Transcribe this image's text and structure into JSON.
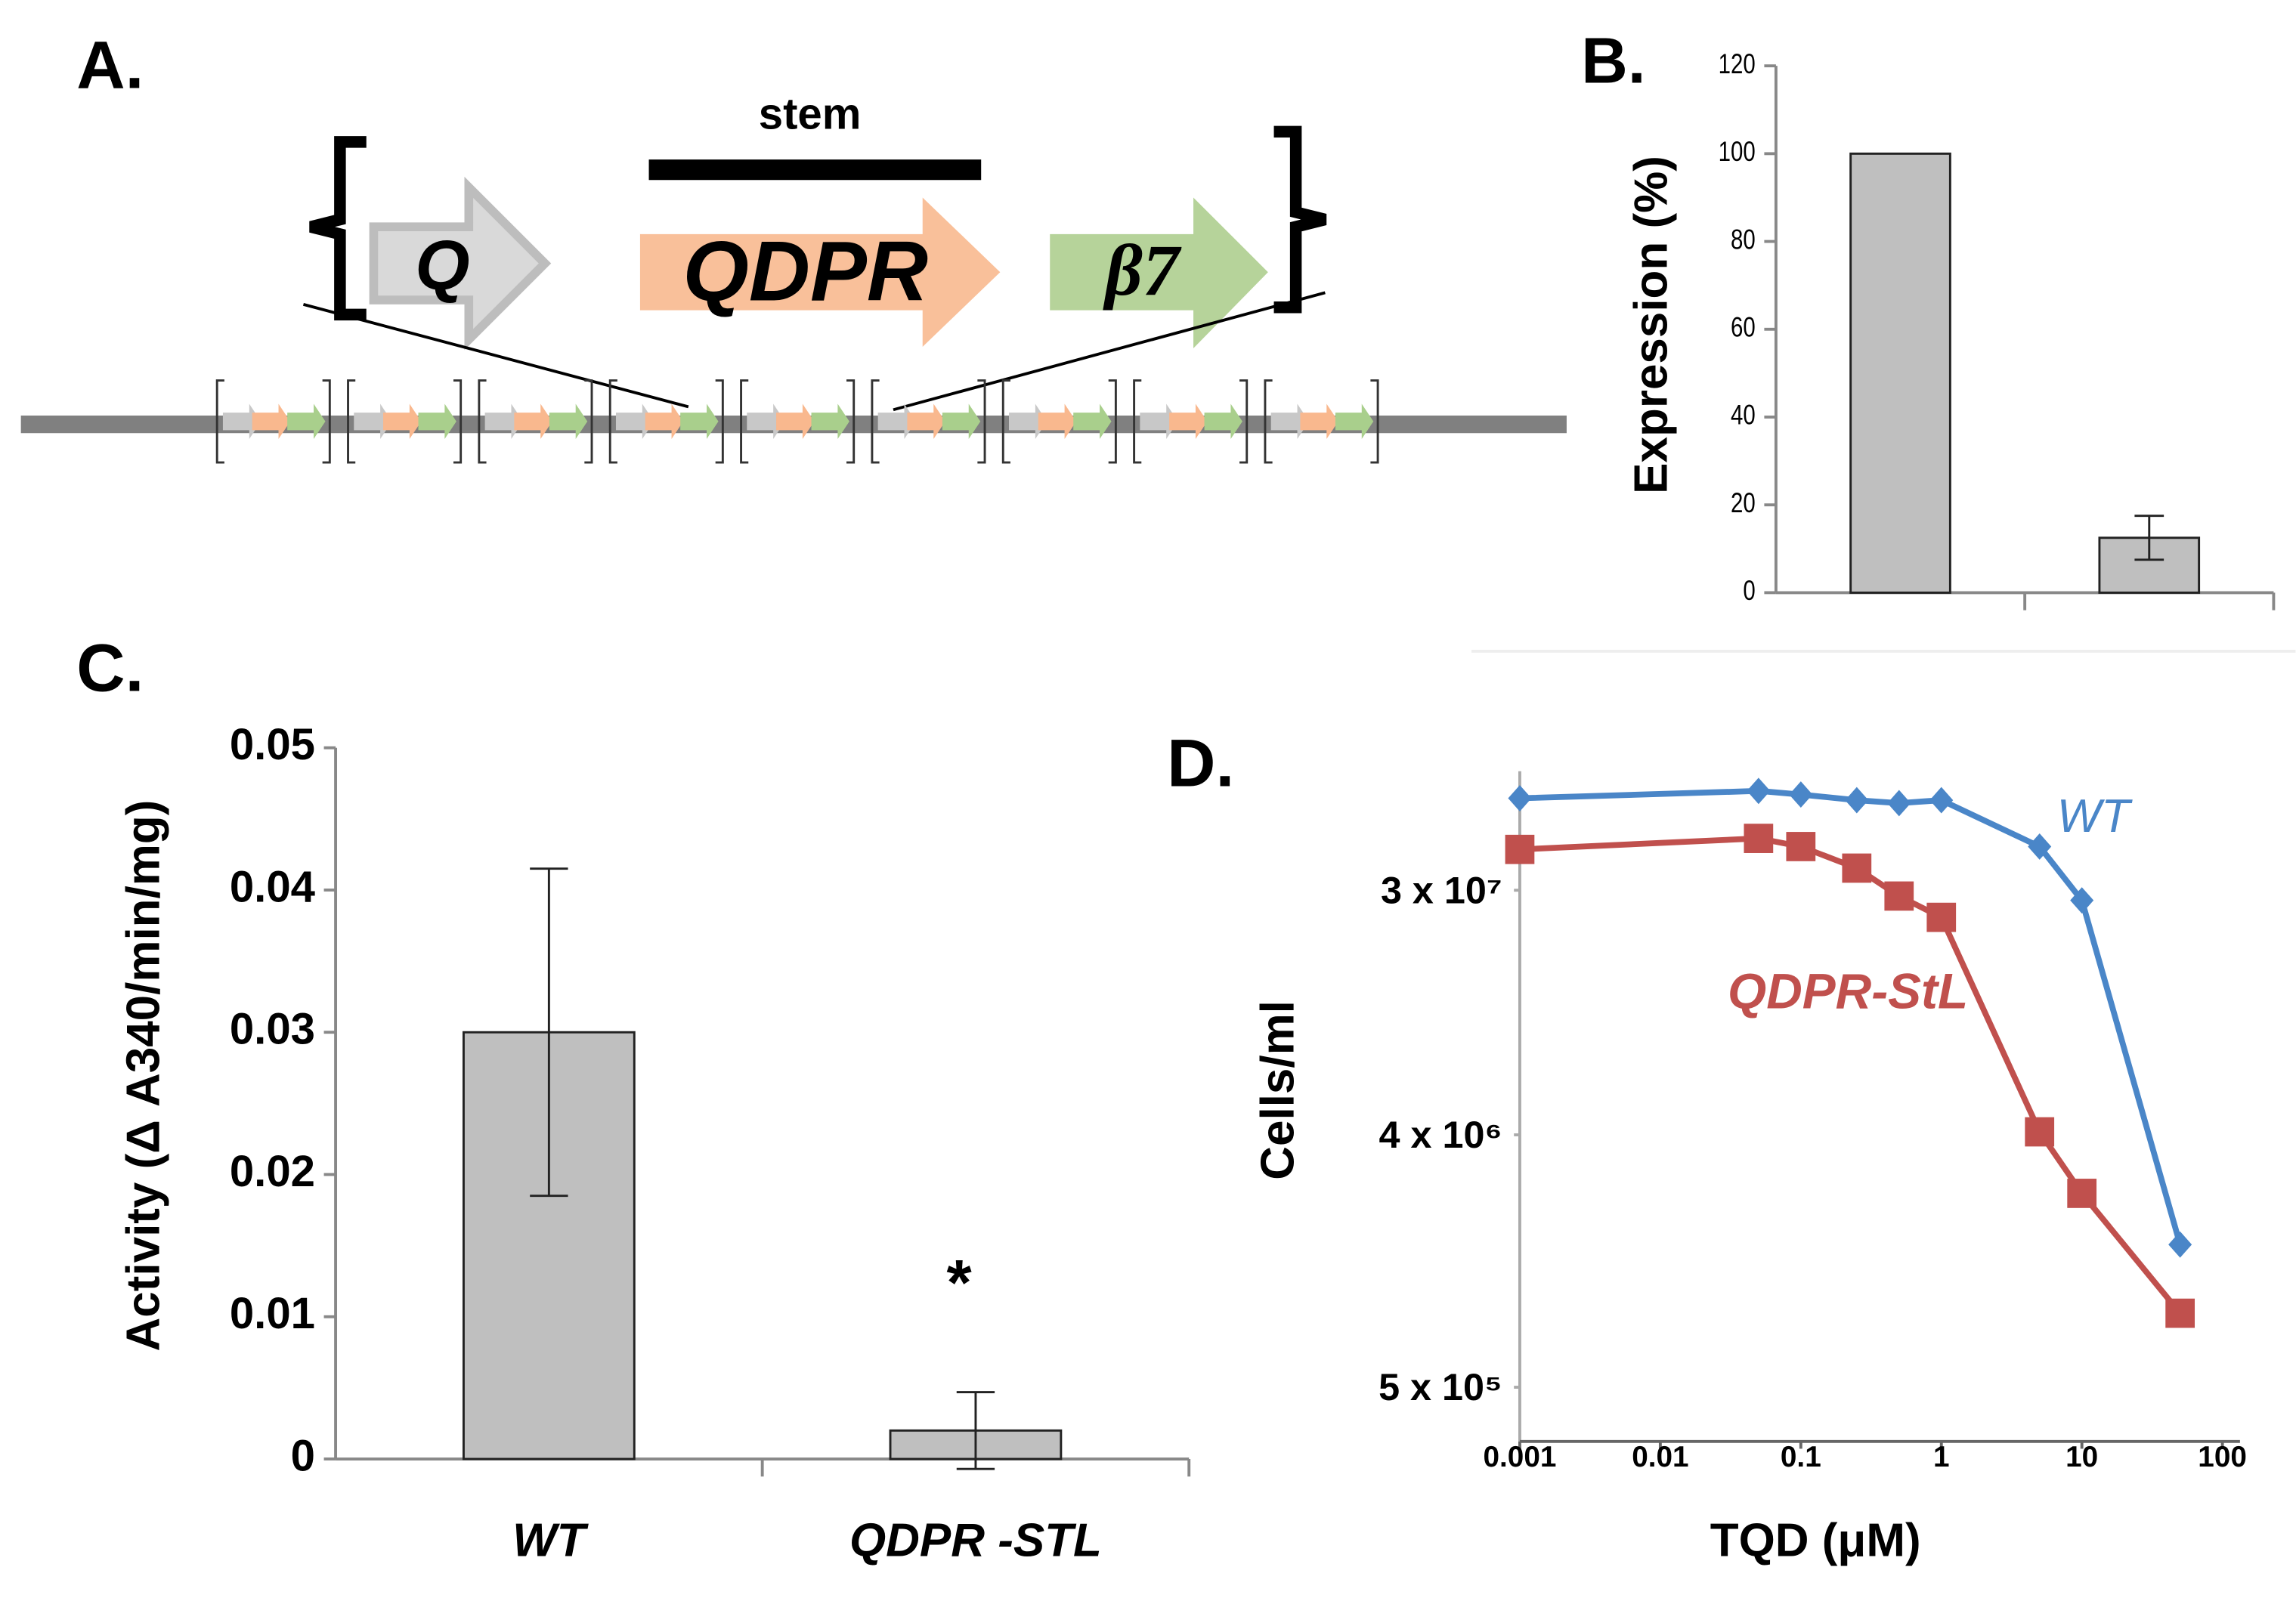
{
  "diagram": {
    "label": "A.",
    "stem": "stem",
    "genes": [
      "Q",
      "QDPR",
      "β7"
    ]
  },
  "chart_data": [
    {
      "type": "bar",
      "label": "B.",
      "y_label": "Expression (%)",
      "categories": [
        null,
        null
      ],
      "values": [
        100,
        12.5
      ],
      "errors": [
        null,
        5
      ],
      "color": "#bfbfbf",
      "ylim": [
        0,
        120
      ],
      "yticks": [
        0,
        20,
        40,
        60,
        80,
        100,
        120
      ]
    },
    {
      "type": "bar",
      "label": "C.",
      "y_label": "Activity  (Δ A340/min/mg)",
      "categories": [
        "WT",
        "QDPR -STL"
      ],
      "values": [
        0.03,
        0.002
      ],
      "errors": [
        0.0115,
        0.0027
      ],
      "color": "#bfbfbf",
      "annotation": "*",
      "ylim": [
        0,
        0.05
      ],
      "yticks": [
        0,
        0.01,
        0.02,
        0.03,
        0.04,
        0.05
      ]
    },
    {
      "type": "line",
      "label": "D.",
      "x_label": "TQD (μM)",
      "y_label": "Cells/ml",
      "xscale": "log",
      "yscale": "log",
      "x": [
        0.001,
        0.05,
        0.1,
        0.25,
        0.5,
        1,
        5,
        10,
        50
      ],
      "series": [
        {
          "name": "WT",
          "color": "#4a86c8",
          "marker": "diamond",
          "values": [
            64000000,
            68000000,
            66000000,
            63000000,
            61500000,
            63000000,
            43000000,
            27600000,
            1620000
          ]
        },
        {
          "name": "QDPR-StL",
          "color": "#c0504d",
          "marker": "square",
          "values": [
            42000000,
            46000000,
            43000000,
            36000000,
            28600000,
            24000000,
            4100000,
            2470000,
            920000
          ]
        }
      ],
      "xlim": [
        0.001,
        100
      ],
      "xticks": [
        0.001,
        0.01,
        0.1,
        1,
        10,
        100
      ],
      "ylim": [
        320000,
        80000000
      ],
      "yticks": [
        {
          "value": 500000,
          "label": "5 x 10⁵"
        },
        {
          "value": 4000000,
          "label": "4 x 10⁶"
        },
        {
          "value": 30000000,
          "label": "3 x 10⁷"
        }
      ]
    }
  ]
}
